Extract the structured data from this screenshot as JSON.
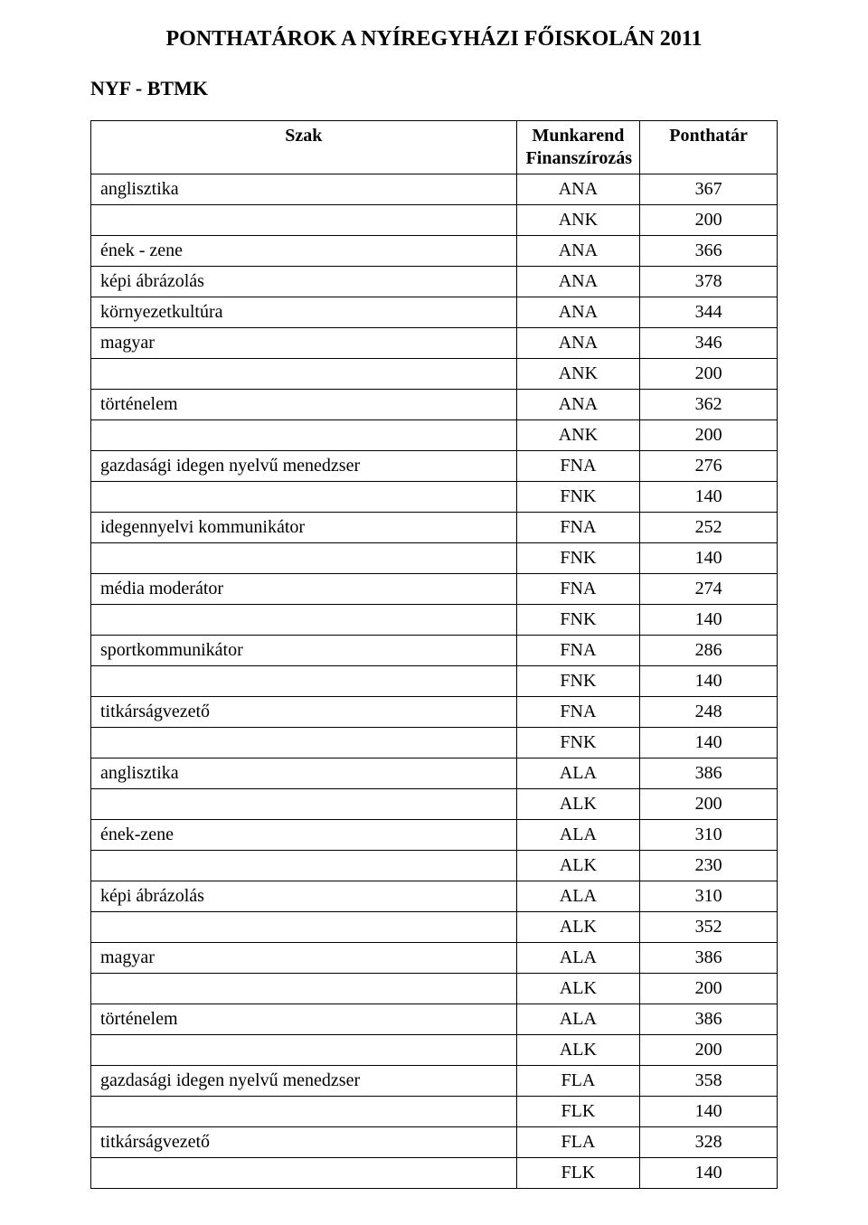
{
  "title": "PONTHATÁROK A NYÍREGYHÁZI FŐISKOLÁN 2011",
  "subhead": "NYF - BTMK",
  "headers": {
    "szak": "Szak",
    "munkarend": "Munkarend Finanszírozás",
    "ponthatar": "Ponthatár"
  },
  "rows": [
    {
      "szak": "anglisztika",
      "code": "ANA",
      "val": "367"
    },
    {
      "szak": "",
      "code": "ANK",
      "val": "200"
    },
    {
      "szak": "ének - zene",
      "code": "ANA",
      "val": "366"
    },
    {
      "szak": "képi ábrázolás",
      "code": "ANA",
      "val": "378"
    },
    {
      "szak": "környezetkultúra",
      "code": "ANA",
      "val": "344"
    },
    {
      "szak": "magyar",
      "code": "ANA",
      "val": "346"
    },
    {
      "szak": "",
      "code": "ANK",
      "val": "200"
    },
    {
      "szak": "történelem",
      "code": "ANA",
      "val": "362"
    },
    {
      "szak": "",
      "code": "ANK",
      "val": "200"
    },
    {
      "szak": "gazdasági idegen nyelvű menedzser",
      "code": "FNA",
      "val": "276"
    },
    {
      "szak": "",
      "code": "FNK",
      "val": "140"
    },
    {
      "szak": "idegennyelvi kommunikátor",
      "code": "FNA",
      "val": "252"
    },
    {
      "szak": "",
      "code": "FNK",
      "val": "140"
    },
    {
      "szak": "média moderátor",
      "code": "FNA",
      "val": "274"
    },
    {
      "szak": "",
      "code": "FNK",
      "val": "140"
    },
    {
      "szak": "sportkommunikátor",
      "code": "FNA",
      "val": "286"
    },
    {
      "szak": "",
      "code": "FNK",
      "val": "140"
    },
    {
      "szak": "titkárságvezető",
      "code": "FNA",
      "val": "248"
    },
    {
      "szak": "",
      "code": "FNK",
      "val": "140"
    },
    {
      "szak": "anglisztika",
      "code": "ALA",
      "val": "386"
    },
    {
      "szak": "",
      "code": "ALK",
      "val": "200"
    },
    {
      "szak": "ének-zene",
      "code": "ALA",
      "val": "310"
    },
    {
      "szak": "",
      "code": "ALK",
      "val": "230"
    },
    {
      "szak": "képi ábrázolás",
      "code": "ALA",
      "val": "310"
    },
    {
      "szak": "",
      "code": "ALK",
      "val": "352"
    },
    {
      "szak": "magyar",
      "code": "ALA",
      "val": "386"
    },
    {
      "szak": "",
      "code": "ALK",
      "val": "200"
    },
    {
      "szak": "történelem",
      "code": "ALA",
      "val": "386"
    },
    {
      "szak": "",
      "code": "ALK",
      "val": "200"
    },
    {
      "szak": "gazdasági idegen nyelvű menedzser",
      "code": "FLA",
      "val": "358"
    },
    {
      "szak": "",
      "code": "FLK",
      "val": "140"
    },
    {
      "szak": "titkárságvezető",
      "code": "FLA",
      "val": "328"
    },
    {
      "szak": "",
      "code": "FLK",
      "val": "140"
    }
  ]
}
